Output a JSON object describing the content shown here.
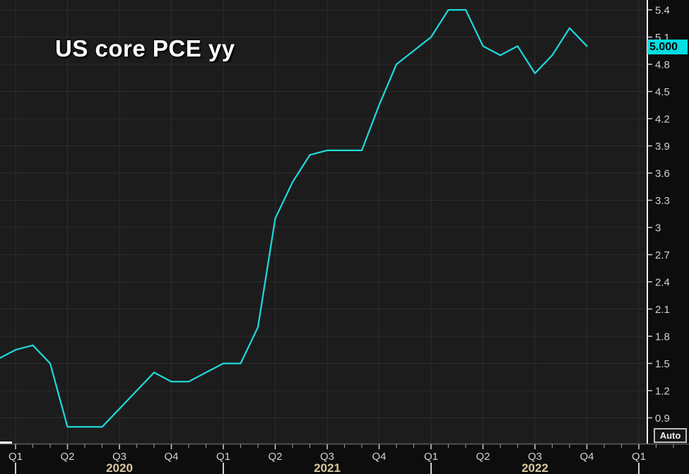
{
  "chart_data": {
    "type": "line",
    "title": "US core PCE yy",
    "xlabel": "",
    "ylabel": "",
    "x_unit": "month",
    "x": [
      "2019-12",
      "2020-01",
      "2020-02",
      "2020-03",
      "2020-04",
      "2020-05",
      "2020-06",
      "2020-07",
      "2020-08",
      "2020-09",
      "2020-10",
      "2020-11",
      "2020-12",
      "2021-01",
      "2021-02",
      "2021-03",
      "2021-04",
      "2021-05",
      "2021-06",
      "2021-07",
      "2021-08",
      "2021-09",
      "2021-10",
      "2021-11",
      "2021-12",
      "2022-01",
      "2022-02",
      "2022-03",
      "2022-04",
      "2022-05",
      "2022-06",
      "2022-07",
      "2022-08",
      "2022-09",
      "2022-10"
    ],
    "series": [
      {
        "name": "US core PCE yy",
        "color": "#1fd7da",
        "values": [
          1.55,
          1.65,
          1.7,
          1.5,
          0.8,
          0.8,
          0.8,
          1.0,
          1.2,
          1.4,
          1.3,
          1.3,
          1.4,
          1.5,
          1.5,
          1.9,
          3.1,
          3.5,
          3.8,
          3.85,
          3.85,
          3.85,
          4.35,
          4.8,
          4.95,
          5.1,
          5.4,
          5.4,
          5.0,
          4.9,
          5.0,
          4.7,
          4.9,
          5.2,
          5.0
        ]
      }
    ],
    "last_value": 5.0,
    "y_ticks": [
      0.9,
      1.2,
      1.5,
      1.8,
      2.1,
      2.4,
      2.7,
      3,
      3.3,
      3.6,
      3.9,
      4.2,
      4.5,
      4.8,
      5.1,
      5.4
    ],
    "ylim": [
      0.7,
      5.51
    ],
    "grid": true,
    "legend_position": "none"
  },
  "y_axis": {
    "tick_labels": [
      "0.9",
      "1.2",
      "1.5",
      "1.8",
      "2.1",
      "2.4",
      "2.7",
      "3",
      "3.3",
      "3.6",
      "3.9",
      "4.2",
      "4.5",
      "4.8",
      "5.1",
      "5.4"
    ],
    "last_price_label": "5.000",
    "auto_button_label": "Auto"
  },
  "x_axis": {
    "quarter_labels": [
      "Q1",
      "Q2",
      "Q3",
      "Q4",
      "Q1",
      "Q2",
      "Q3",
      "Q4",
      "Q1",
      "Q2",
      "Q3",
      "Q4",
      "Q1"
    ],
    "year_labels": [
      "2020",
      "2021",
      "2022"
    ]
  },
  "colors": {
    "plot_background": "#1c1c1c",
    "margin_background": "#0d0d0d",
    "grid": "#2d2d2d",
    "line": "#1fd7da",
    "y_axis_line": "#f2f2f2",
    "x_axis_line": "#5f5f5f",
    "tick_label": "#d2d2d2",
    "year_label": "#d9c9a2",
    "last_price_background": "#00dfe2",
    "last_price_text": "#000000",
    "title": "#ffffff"
  }
}
